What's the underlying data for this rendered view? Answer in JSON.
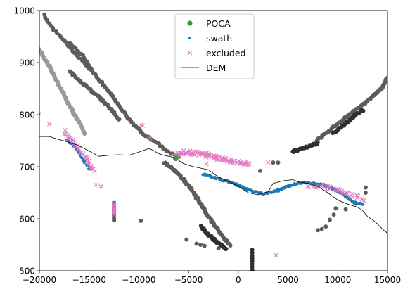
{
  "chart_data": {
    "type": "scatter",
    "title": "",
    "xlabel": "",
    "ylabel": "",
    "xlim": [
      -20000,
      15000
    ],
    "ylim": [
      500,
      1000
    ],
    "grid": false,
    "legend_position": "top-center",
    "xticks": [
      -20000,
      -15000,
      -10000,
      -5000,
      0,
      5000,
      10000,
      15000
    ],
    "xtick_labels": [
      "−20000",
      "−15000",
      "−10000",
      "−5000",
      "0",
      "5000",
      "10000",
      "15000"
    ],
    "yticks": [
      500,
      600,
      700,
      800,
      900,
      1000
    ],
    "ytick_labels": [
      "500",
      "600",
      "700",
      "800",
      "900",
      "1000"
    ],
    "legend": [
      {
        "label": "POCA",
        "marker": "circle",
        "color": "#2ca02c"
      },
      {
        "label": "swath",
        "marker": "dot",
        "color": "#1f77b4"
      },
      {
        "label": "excluded",
        "marker": "x",
        "color": "#e377c2"
      },
      {
        "label": "DEM",
        "marker": "line",
        "color": "#000000"
      }
    ],
    "series": [
      {
        "name": "DEM",
        "kind": "line",
        "color": "#000000",
        "points": [
          [
            -20000,
            758
          ],
          [
            -19000,
            758
          ],
          [
            -18000,
            752
          ],
          [
            -17000,
            747
          ],
          [
            -16000,
            740
          ],
          [
            -15000,
            730
          ],
          [
            -14000,
            720
          ],
          [
            -13000,
            722
          ],
          [
            -12000,
            723
          ],
          [
            -11000,
            722
          ],
          [
            -10000,
            728
          ],
          [
            -9000,
            735
          ],
          [
            -8500,
            731
          ],
          [
            -8000,
            725
          ],
          [
            -7500,
            722
          ],
          [
            -6500,
            718
          ],
          [
            -5500,
            706
          ],
          [
            -4500,
            700
          ],
          [
            -3000,
            694
          ],
          [
            -2000,
            680
          ],
          [
            -1000,
            672
          ],
          [
            0,
            662
          ],
          [
            1000,
            650
          ],
          [
            2000,
            646
          ],
          [
            3000,
            652
          ],
          [
            3500,
            668
          ],
          [
            4500,
            673
          ],
          [
            5500,
            675
          ],
          [
            6000,
            671
          ],
          [
            7000,
            668
          ],
          [
            8000,
            662
          ],
          [
            9000,
            650
          ],
          [
            10000,
            636
          ],
          [
            11000,
            628
          ],
          [
            12000,
            622
          ],
          [
            12500,
            616
          ],
          [
            13000,
            604
          ],
          [
            13500,
            598
          ],
          [
            14000,
            590
          ],
          [
            14500,
            580
          ],
          [
            15000,
            572
          ]
        ]
      },
      {
        "name": "POCA",
        "kind": "circle",
        "color": "#2ca02c",
        "points": [
          [
            -6300,
            716
          ]
        ]
      },
      {
        "name": "swath",
        "kind": "dot",
        "color": "#1f77b4",
        "segments": [
          {
            "points": [
              [
                -3500,
                685
              ],
              [
                -2500,
                680
              ],
              [
                -1500,
                674
              ],
              [
                -500,
                668
              ],
              [
                500,
                660
              ],
              [
                1500,
                652
              ],
              [
                2500,
                648
              ],
              [
                3500,
                652
              ],
              [
                4500,
                658
              ],
              [
                5500,
                666
              ],
              [
                6500,
                670
              ],
              [
                7500,
                668
              ],
              [
                8500,
                665
              ],
              [
                9500,
                658
              ],
              [
                10500,
                648
              ],
              [
                11000,
                640
              ],
              [
                11500,
                632
              ],
              [
                12000,
                630
              ],
              [
                12500,
                628
              ]
            ],
            "count": 170,
            "jitter": 3
          },
          {
            "points": [
              [
                -17200,
                752
              ],
              [
                -16500,
                738
              ],
              [
                -16000,
                728
              ],
              [
                -15500,
                710
              ],
              [
                -15000,
                695
              ]
            ],
            "count": 25,
            "jitter": 4
          }
        ]
      },
      {
        "name": "excluded",
        "kind": "x",
        "color": "#e377c2",
        "segments": [
          {
            "points": [
              [
                -6500,
                722
              ],
              [
                -5500,
                727
              ],
              [
                -4500,
                726
              ],
              [
                -3000,
                722
              ],
              [
                -2000,
                716
              ],
              [
                -1000,
                712
              ],
              [
                0,
                708
              ],
              [
                1000,
                706
              ]
            ],
            "count": 85,
            "jitter": 8
          },
          {
            "points": [
              [
                -17500,
                768
              ],
              [
                -16500,
                745
              ],
              [
                -15500,
                722
              ],
              [
                -15000,
                706
              ],
              [
                -14500,
                693
              ]
            ],
            "count": 32,
            "jitter": 6
          },
          {
            "points": [
              [
                7000,
                662
              ],
              [
                9000,
                660
              ],
              [
                11000,
                648
              ],
              [
                12500,
                638
              ]
            ],
            "count": 30,
            "jitter": 8
          },
          {
            "points": [
              [
                -12500,
                630
              ],
              [
                -12500,
                608
              ]
            ],
            "count": 9,
            "jitter": 0
          }
        ],
        "points": [
          [
            -20000,
            802
          ],
          [
            -19000,
            782
          ],
          [
            -9800,
            780
          ],
          [
            -9600,
            779
          ],
          [
            -8900,
            755
          ],
          [
            -3200,
            705
          ],
          [
            3000,
            708
          ],
          [
            3800,
            530
          ],
          [
            -14300,
            665
          ],
          [
            -13800,
            662
          ]
        ]
      },
      {
        "name": "",
        "kind": "circle-gray",
        "color": "#5c5c5c",
        "segments": [
          {
            "points": [
              [
                -19500,
                992
              ],
              [
                -19000,
                975
              ],
              [
                -18500,
                962
              ],
              [
                -17500,
                942
              ],
              [
                -16500,
                918
              ],
              [
                -15500,
                900
              ],
              [
                -15000,
                888
              ]
            ],
            "count": 28,
            "jitter": 3
          },
          {
            "points": [
              [
                -17000,
                884
              ],
              [
                -16000,
                866
              ],
              [
                -15000,
                850
              ],
              [
                -14000,
                834
              ],
              [
                -13000,
                815
              ],
              [
                -12000,
                790
              ]
            ],
            "count": 55,
            "jitter": 3
          },
          {
            "points": [
              [
                -17000,
                938
              ],
              [
                -15500,
                910
              ],
              [
                -14500,
                878
              ],
              [
                -13000,
                845
              ],
              [
                -12000,
                818
              ],
              [
                -11000,
                790
              ],
              [
                -9500,
                762
              ],
              [
                -8000,
                744
              ],
              [
                -7000,
                728
              ],
              [
                -6000,
                718
              ]
            ],
            "count": 80,
            "jitter": 3
          },
          {
            "points": [
              [
                -7500,
                708
              ],
              [
                -6500,
                695
              ],
              [
                -5500,
                675
              ],
              [
                -4500,
                650
              ],
              [
                -3500,
                618
              ],
              [
                -2500,
                590
              ],
              [
                -1500,
                565
              ],
              [
                -800,
                550
              ]
            ],
            "count": 95,
            "jitter": 4
          },
          {
            "points": [
              [
                7800,
                748
              ],
              [
                8500,
                760
              ],
              [
                9500,
                775
              ],
              [
                10500,
                790
              ],
              [
                11500,
                805
              ],
              [
                12500,
                818
              ],
              [
                13500,
                835
              ],
              [
                14500,
                852
              ],
              [
                15000,
                872
              ]
            ],
            "count": 75,
            "jitter": 3
          },
          {
            "points": [
              [
                -12500,
                630
              ],
              [
                -12500,
                597
              ]
            ],
            "count": 12,
            "jitter": 0
          }
        ],
        "points": [
          [
            -9800,
            596
          ],
          [
            -2000,
            543
          ],
          [
            -5200,
            560
          ],
          [
            -4200,
            552
          ],
          [
            4000,
            654
          ],
          [
            12800,
            660
          ],
          [
            12800,
            650
          ],
          [
            2200,
            692
          ],
          [
            3500,
            708
          ],
          [
            4000,
            708
          ],
          [
            10800,
            618
          ],
          [
            11800,
            629
          ],
          [
            9800,
            620
          ],
          [
            9600,
            608
          ],
          [
            9200,
            598
          ],
          [
            8800,
            585
          ],
          [
            8400,
            580
          ],
          [
            8000,
            578
          ],
          [
            -3800,
            550
          ],
          [
            -3400,
            548
          ]
        ]
      },
      {
        "name": "",
        "kind": "circle-light",
        "color": "#9a9a9a",
        "segments": [
          {
            "points": [
              [
                -20000,
                925
              ],
              [
                -19000,
                892
              ],
              [
                -18000,
                856
              ],
              [
                -17000,
                818
              ],
              [
                -16000,
                785
              ],
              [
                -15400,
                762
              ]
            ],
            "count": 80,
            "jitter": 3
          }
        ]
      },
      {
        "name": "",
        "kind": "circle-dark",
        "color": "#2f2f2f",
        "segments": [
          {
            "points": [
              [
                -3800,
                585
              ],
              [
                -2800,
                566
              ],
              [
                -1800,
                550
              ],
              [
                -1200,
                542
              ]
            ],
            "count": 38,
            "jitter": 4
          },
          {
            "points": [
              [
                5500,
                728
              ],
              [
                6500,
                736
              ],
              [
                7500,
                742
              ],
              [
                8000,
                746
              ]
            ],
            "count": 30,
            "jitter": 4
          },
          {
            "points": [
              [
                9500,
                765
              ],
              [
                10500,
                778
              ],
              [
                11500,
                795
              ],
              [
                12500,
                808
              ]
            ],
            "count": 30,
            "jitter": 4
          },
          {
            "points": [
              [
                1400,
                540
              ],
              [
                1400,
                502
              ]
            ],
            "count": 8,
            "jitter": 0
          }
        ]
      }
    ]
  }
}
